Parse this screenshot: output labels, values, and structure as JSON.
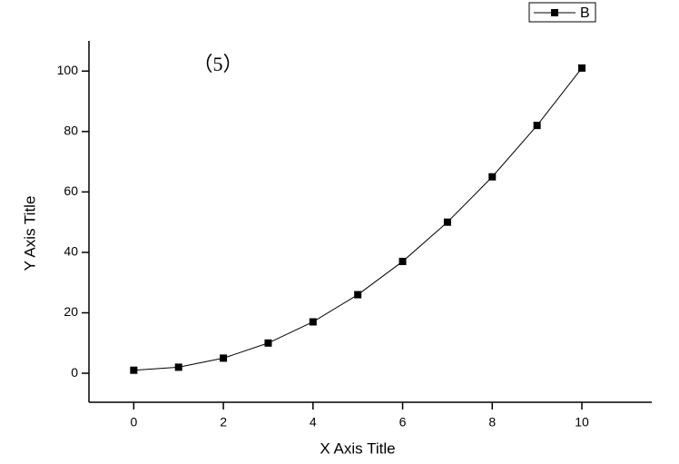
{
  "chart_data": {
    "type": "line",
    "x_label": "X Axis Title",
    "y_label": "Y Axis Title",
    "annotation": "（5）",
    "annotation_color": "#e8413a",
    "x": [
      0,
      1,
      2,
      3,
      4,
      5,
      6,
      7,
      8,
      9,
      10
    ],
    "series": [
      {
        "name": "B",
        "color": "#000000",
        "values": [
          1,
          2,
          5,
          10,
          17,
          26,
          37,
          50,
          65,
          82,
          101
        ]
      }
    ],
    "xlim": [
      -1,
      11.56
    ],
    "xticks": [
      0,
      2,
      4,
      6,
      8,
      10
    ],
    "ylim": [
      -9.6,
      110
    ],
    "yticks": [
      0,
      20,
      40,
      60,
      80,
      100
    ],
    "legend": "top-right",
    "grid": false
  }
}
